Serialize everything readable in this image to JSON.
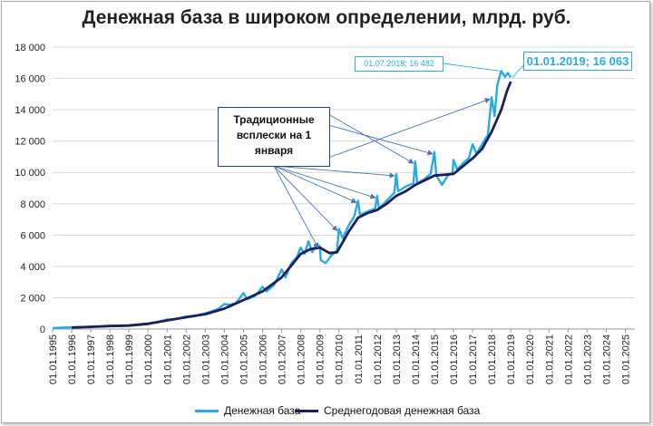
{
  "chart_data": {
    "type": "line",
    "title": "Денежная база в широком определении, млрд. руб.",
    "ylim": [
      0,
      18000
    ],
    "y_ticks": [
      "0",
      "2 000",
      "4 000",
      "6 000",
      "8 000",
      "10 000",
      "12 000",
      "14 000",
      "16 000",
      "18 000"
    ],
    "y_tick_values": [
      0,
      2000,
      4000,
      6000,
      8000,
      10000,
      12000,
      14000,
      16000,
      18000
    ],
    "x_ticks": [
      "01.01.1995",
      "01.01.1996",
      "01.01.1997",
      "01.01.1998",
      "01.01.1999",
      "01.01.2000",
      "01.01.2001",
      "01.01.2002",
      "01.01.2003",
      "01.01.2004",
      "01.01.2005",
      "01.01.2006",
      "01.01.2007",
      "01.01.2008",
      "01.01.2009",
      "01.01.2010",
      "01.01.2011",
      "01.01.2012",
      "01.01.2013",
      "01.01.2014",
      "01.01.2015",
      "01.01.2016",
      "01.01.2017",
      "01.01.2018",
      "01.01.2019",
      "01.01.2020",
      "01.01.2021",
      "01.01.2022",
      "01.01.2023",
      "01.01.2024",
      "01.01.2025"
    ],
    "grid": true,
    "legend_position": "bottom",
    "series": [
      {
        "name": "Денежная база",
        "color": "#29abe2",
        "points": [
          [
            1995.0,
            60
          ],
          [
            1995.5,
            90
          ],
          [
            1996.0,
            110
          ],
          [
            1996.5,
            130
          ],
          [
            1997.0,
            150
          ],
          [
            1997.5,
            170
          ],
          [
            1998.0,
            200
          ],
          [
            1998.5,
            210
          ],
          [
            1999.0,
            230
          ],
          [
            1999.5,
            290
          ],
          [
            2000.0,
            350
          ],
          [
            2000.5,
            450
          ],
          [
            2001.0,
            600
          ],
          [
            2001.5,
            640
          ],
          [
            2002.0,
            800
          ],
          [
            2002.5,
            850
          ],
          [
            2003.0,
            1000
          ],
          [
            2003.4,
            1150
          ],
          [
            2003.7,
            1300
          ],
          [
            2004.0,
            1600
          ],
          [
            2004.3,
            1550
          ],
          [
            2004.6,
            1650
          ],
          [
            2005.0,
            2300
          ],
          [
            2005.2,
            1900
          ],
          [
            2005.6,
            2100
          ],
          [
            2006.0,
            2700
          ],
          [
            2006.2,
            2400
          ],
          [
            2006.6,
            2800
          ],
          [
            2007.0,
            3800
          ],
          [
            2007.2,
            3300
          ],
          [
            2007.5,
            4200
          ],
          [
            2007.8,
            4600
          ],
          [
            2008.0,
            5200
          ],
          [
            2008.2,
            4800
          ],
          [
            2008.4,
            5600
          ],
          [
            2008.6,
            4900
          ],
          [
            2008.8,
            5400
          ],
          [
            2009.0,
            5300
          ],
          [
            2009.05,
            4400
          ],
          [
            2009.3,
            4200
          ],
          [
            2009.6,
            4700
          ],
          [
            2009.9,
            5000
          ],
          [
            2010.0,
            6400
          ],
          [
            2010.2,
            5800
          ],
          [
            2010.5,
            6600
          ],
          [
            2010.8,
            7200
          ],
          [
            2011.0,
            8200
          ],
          [
            2011.1,
            7300
          ],
          [
            2011.5,
            7500
          ],
          [
            2011.9,
            7700
          ],
          [
            2012.0,
            8500
          ],
          [
            2012.1,
            7700
          ],
          [
            2012.5,
            8200
          ],
          [
            2012.9,
            8700
          ],
          [
            2013.0,
            9900
          ],
          [
            2013.1,
            8800
          ],
          [
            2013.5,
            9100
          ],
          [
            2013.9,
            9300
          ],
          [
            2014.0,
            10700
          ],
          [
            2014.1,
            9300
          ],
          [
            2014.5,
            9600
          ],
          [
            2014.8,
            9900
          ],
          [
            2015.0,
            11300
          ],
          [
            2015.1,
            9800
          ],
          [
            2015.4,
            9200
          ],
          [
            2015.7,
            9800
          ],
          [
            2015.95,
            10000
          ],
          [
            2016.0,
            10800
          ],
          [
            2016.2,
            10200
          ],
          [
            2016.5,
            10600
          ],
          [
            2016.8,
            10900
          ],
          [
            2017.0,
            11800
          ],
          [
            2017.2,
            11200
          ],
          [
            2017.5,
            11800
          ],
          [
            2017.8,
            12400
          ],
          [
            2018.0,
            14800
          ],
          [
            2018.15,
            13600
          ],
          [
            2018.3,
            15600
          ],
          [
            2018.5,
            16482
          ],
          [
            2018.7,
            16100
          ],
          [
            2018.85,
            16350
          ],
          [
            2019.0,
            16063
          ]
        ]
      },
      {
        "name": "Среднегодовая денежная база",
        "color": "#1b1f5c",
        "points": [
          [
            1996.0,
            90
          ],
          [
            1997.0,
            140
          ],
          [
            1998.0,
            190
          ],
          [
            1999.0,
            220
          ],
          [
            2000.0,
            330
          ],
          [
            2001.0,
            550
          ],
          [
            2002.0,
            750
          ],
          [
            2003.0,
            950
          ],
          [
            2004.0,
            1300
          ],
          [
            2005.0,
            1850
          ],
          [
            2006.0,
            2400
          ],
          [
            2007.0,
            3300
          ],
          [
            2008.0,
            4800
          ],
          [
            2008.5,
            5100
          ],
          [
            2009.0,
            5200
          ],
          [
            2009.5,
            4850
          ],
          [
            2009.9,
            4900
          ],
          [
            2010.5,
            6200
          ],
          [
            2011.0,
            7100
          ],
          [
            2011.5,
            7400
          ],
          [
            2012.0,
            7600
          ],
          [
            2012.5,
            8000
          ],
          [
            2013.0,
            8500
          ],
          [
            2013.5,
            8800
          ],
          [
            2014.0,
            9200
          ],
          [
            2014.5,
            9500
          ],
          [
            2015.0,
            9800
          ],
          [
            2015.5,
            9850
          ],
          [
            2016.0,
            9900
          ],
          [
            2016.5,
            10400
          ],
          [
            2017.0,
            10900
          ],
          [
            2017.5,
            11500
          ],
          [
            2018.0,
            12600
          ],
          [
            2018.5,
            14000
          ],
          [
            2018.8,
            15200
          ],
          [
            2019.0,
            15800
          ]
        ]
      }
    ],
    "annotations": {
      "traditional": {
        "lines": [
          "Традиционные",
          "всплески на 1",
          "января"
        ]
      },
      "jul2018": "01.07.2018;   16 482",
      "jan2019": "01.01.2019;  16 063"
    }
  }
}
